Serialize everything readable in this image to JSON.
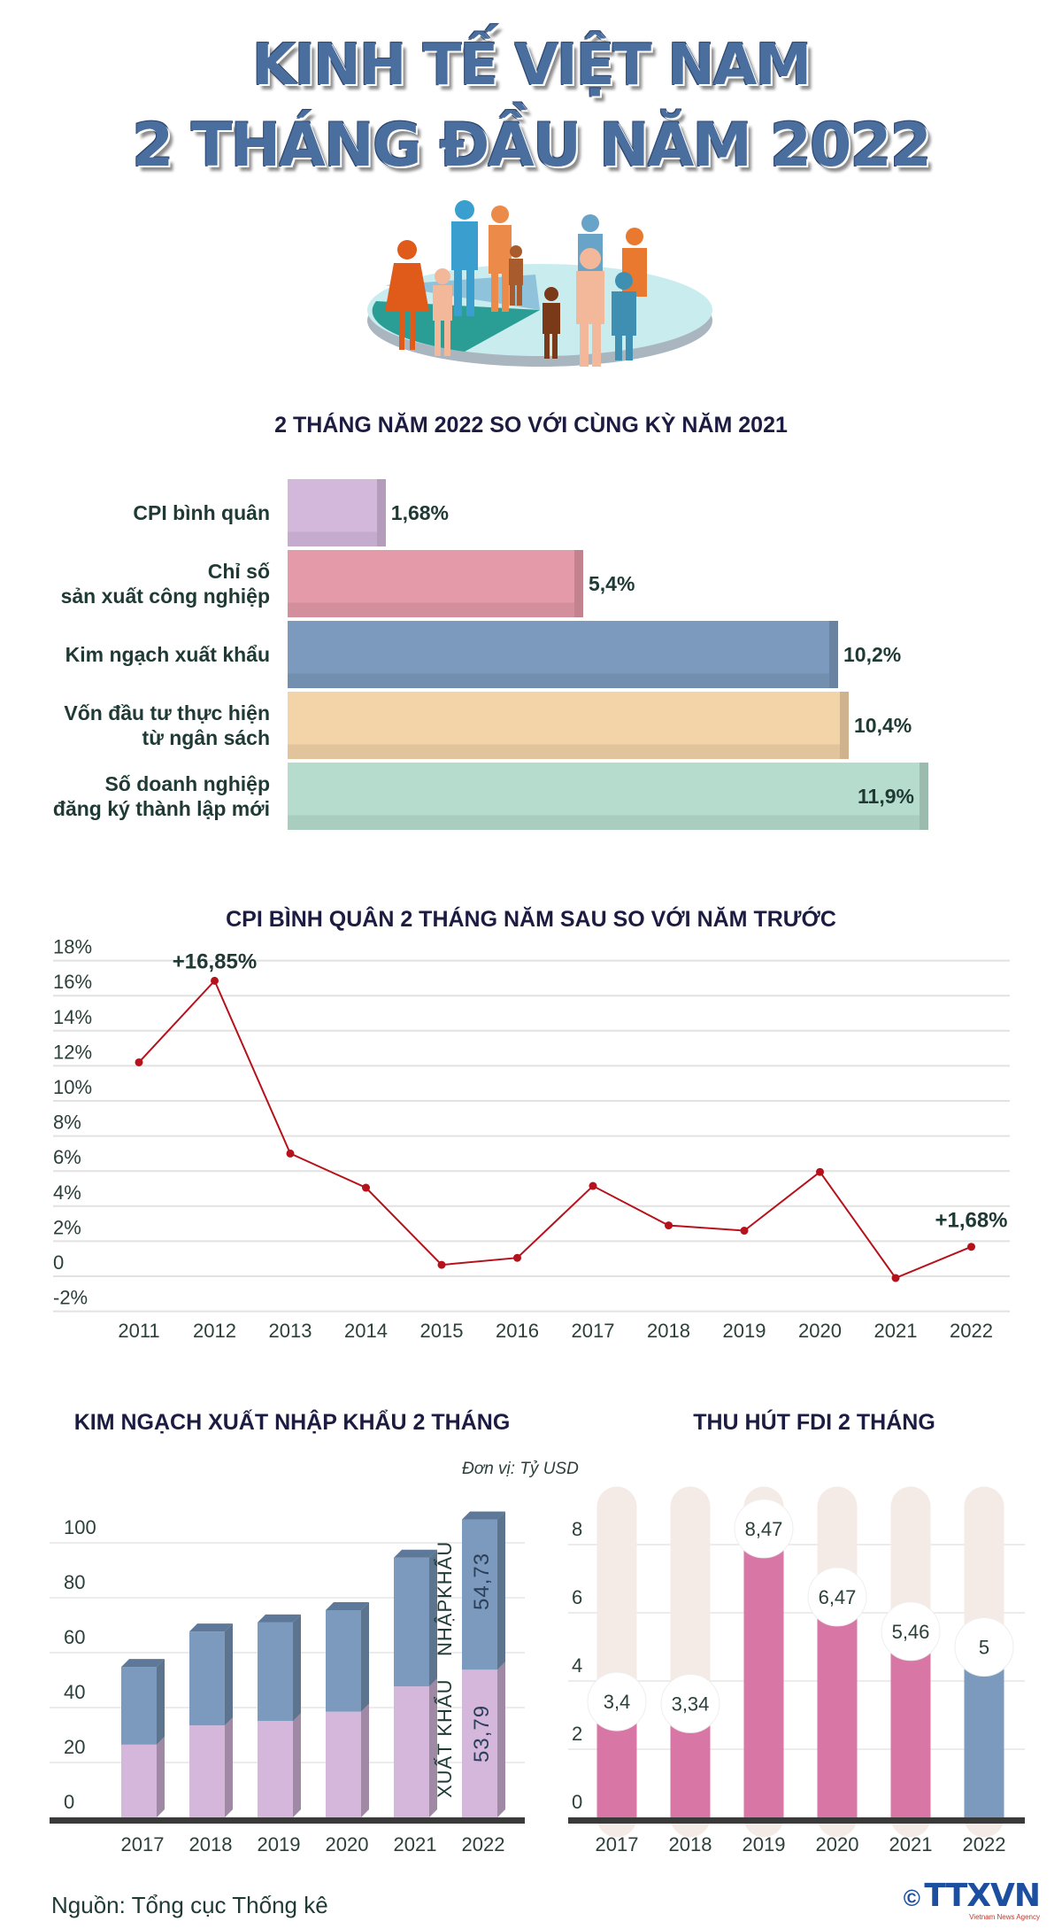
{
  "header": {
    "title_line1": "KINH TẾ VIỆT NAM",
    "title_line2": "2 THÁNG ĐẦU NĂM 2022",
    "illustration_icon": "people-on-pie-chart-icon"
  },
  "chart_data": [
    {
      "type": "bar",
      "orientation": "horizontal",
      "title": "2 THÁNG NĂM 2022 SO VỚI CÙNG KỲ NĂM 2021",
      "categories": [
        "CPI bình quân",
        "Chỉ số\nsản xuất công nghiệp",
        "Kim ngạch xuất khẩu",
        "Vốn đầu tư thực hiện\ntừ ngân sách",
        "Số doanh nghiệp\nđăng ký thành lập mới"
      ],
      "values": [
        1.68,
        5.4,
        10.2,
        10.4,
        11.9
      ],
      "data_labels": [
        "1,68%",
        "5,4%",
        "10,2%",
        "10,4%",
        "11,9%"
      ],
      "colors": [
        "#d4b8dc",
        "#e49aa8",
        "#7b9abd",
        "#f3d3a8",
        "#b6dccd"
      ]
    },
    {
      "type": "line",
      "title": "CPI BÌNH QUÂN 2 THÁNG NĂM SAU SO VỚI NĂM TRƯỚC",
      "x": [
        "2011",
        "2012",
        "2013",
        "2014",
        "2015",
        "2016",
        "2017",
        "2018",
        "2019",
        "2020",
        "2021",
        "2022"
      ],
      "values": [
        12.2,
        16.85,
        7.0,
        5.05,
        0.65,
        1.05,
        5.15,
        2.9,
        2.6,
        5.95,
        -0.1,
        1.68
      ],
      "ylim": [
        -2,
        18
      ],
      "yticks": [
        "18%",
        "16%",
        "14%",
        "12%",
        "10%",
        "8%",
        "6%",
        "4%",
        "2%",
        "0",
        "-2%"
      ],
      "ytick_values": [
        18,
        16,
        14,
        12,
        10,
        8,
        6,
        4,
        2,
        0,
        -2
      ],
      "annotations": [
        {
          "x": "2012",
          "text": "+16,85%"
        },
        {
          "x": "2022",
          "text": "+1,68%"
        }
      ],
      "grid": true,
      "color": "#b5121b"
    },
    {
      "type": "bar",
      "stacked": true,
      "title": "KIM NGẠCH XUẤT NHẬP KHẨU 2 THÁNG",
      "categories": [
        "2017",
        "2018",
        "2019",
        "2020",
        "2021",
        "2022"
      ],
      "series": [
        {
          "name": "XUẤT KHẨU",
          "values": [
            26.5,
            33.5,
            35.1,
            38.5,
            47.7,
            53.79
          ],
          "color": "#d5b7dc"
        },
        {
          "name": "NHẬPKHẨU",
          "values": [
            28.3,
            34.2,
            35.9,
            37.0,
            46.9,
            54.73
          ],
          "color": "#7b9abd"
        }
      ],
      "data_labels": {
        "2022": [
          "53,79",
          "54,73"
        ]
      },
      "yticks": [
        "0",
        "20",
        "40",
        "60",
        "80",
        "100"
      ],
      "ylim": [
        0,
        110
      ],
      "grid": true
    },
    {
      "type": "bar",
      "title": "THU HÚT FDI 2 THÁNG",
      "unit_note": "Đơn vị: Tỷ USD",
      "categories": [
        "2017",
        "2018",
        "2019",
        "2020",
        "2021",
        "2022"
      ],
      "values": [
        3.4,
        3.34,
        8.47,
        6.47,
        5.46,
        5
      ],
      "data_labels": [
        "3,4",
        "3,34",
        "8,47",
        "6,47",
        "5,46",
        "5"
      ],
      "yticks": [
        "0",
        "2",
        "4",
        "6",
        "8"
      ],
      "ylim": [
        0,
        9.7
      ],
      "colors": [
        "#d877a6",
        "#d877a6",
        "#d877a6",
        "#d877a6",
        "#d877a6",
        "#7b9abd"
      ],
      "grid": true
    }
  ],
  "footer": {
    "source": "Nguồn: Tổng cục Thống kê",
    "copyright_symbol": "©",
    "logo_text": "TTXVN",
    "logo_subtext": "Vietnam News Agency"
  }
}
